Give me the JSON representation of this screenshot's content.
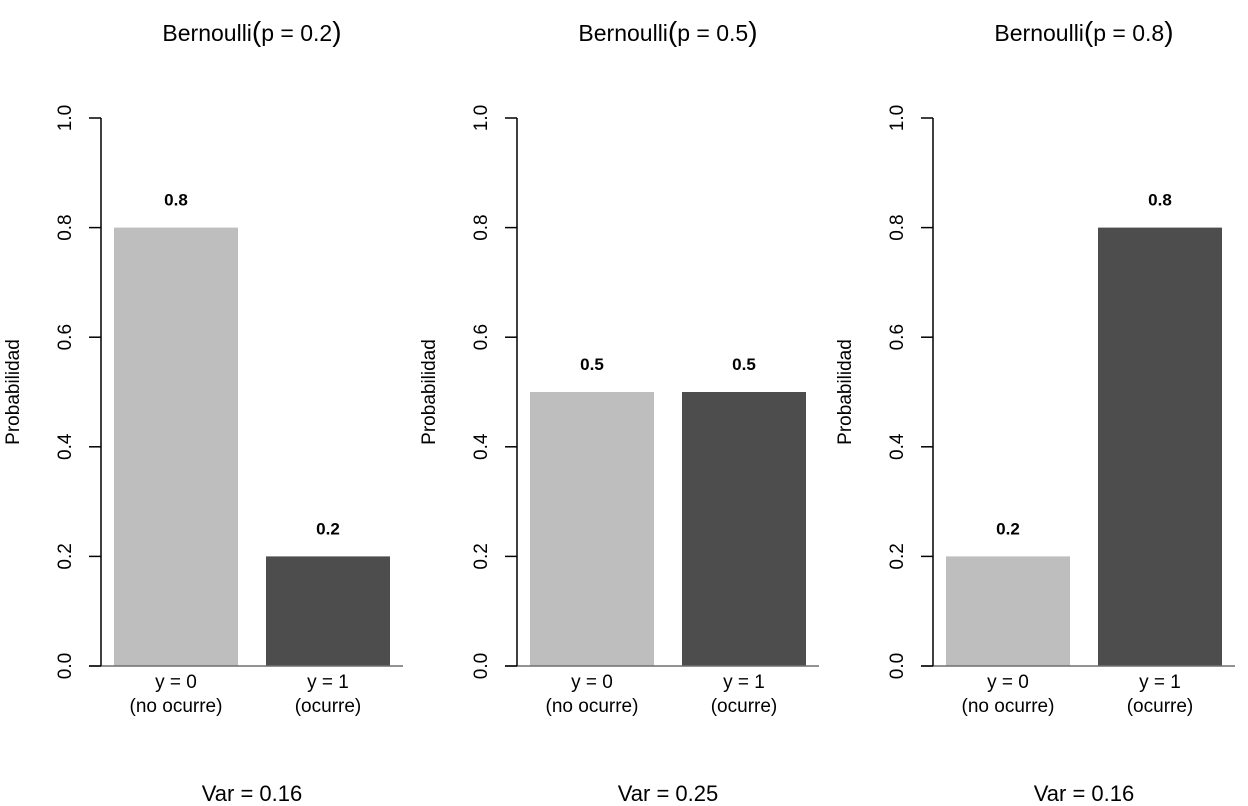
{
  "chart_data": [
    {
      "type": "bar",
      "title": "Bernoulli(p = 0.2)",
      "title_prefix": "Bernoulli",
      "title_param": "p = 0.2",
      "categories": [
        [
          "y = 0",
          "(no ocurre)"
        ],
        [
          "y = 1",
          "(ocurre)"
        ]
      ],
      "values": [
        0.8,
        0.2
      ],
      "value_labels": [
        "0.8",
        "0.2"
      ],
      "colors": [
        "#bebebe",
        "#4d4d4d"
      ],
      "xlabel": "",
      "ylabel": "Probabilidad",
      "ylim": [
        0,
        1
      ],
      "yticks": [
        "0.0",
        "0.2",
        "0.4",
        "0.6",
        "0.8",
        "1.0"
      ],
      "caption": "Var = 0.16",
      "grid": false
    },
    {
      "type": "bar",
      "title": "Bernoulli(p = 0.5)",
      "title_prefix": "Bernoulli",
      "title_param": "p = 0.5",
      "categories": [
        [
          "y = 0",
          "(no ocurre)"
        ],
        [
          "y = 1",
          "(ocurre)"
        ]
      ],
      "values": [
        0.5,
        0.5
      ],
      "value_labels": [
        "0.5",
        "0.5"
      ],
      "colors": [
        "#bebebe",
        "#4d4d4d"
      ],
      "xlabel": "",
      "ylabel": "Probabilidad",
      "ylim": [
        0,
        1
      ],
      "yticks": [
        "0.0",
        "0.2",
        "0.4",
        "0.6",
        "0.8",
        "1.0"
      ],
      "caption": "Var = 0.25",
      "grid": false
    },
    {
      "type": "bar",
      "title": "Bernoulli(p = 0.8)",
      "title_prefix": "Bernoulli",
      "title_param": "p = 0.8",
      "categories": [
        [
          "y = 0",
          "(no ocurre)"
        ],
        [
          "y = 1",
          "(ocurre)"
        ]
      ],
      "values": [
        0.2,
        0.8
      ],
      "value_labels": [
        "0.2",
        "0.8"
      ],
      "colors": [
        "#bebebe",
        "#4d4d4d"
      ],
      "xlabel": "",
      "ylabel": "Probabilidad",
      "ylim": [
        0,
        1
      ],
      "yticks": [
        "0.0",
        "0.2",
        "0.4",
        "0.6",
        "0.8",
        "1.0"
      ],
      "caption": "Var = 0.16",
      "grid": false
    }
  ]
}
